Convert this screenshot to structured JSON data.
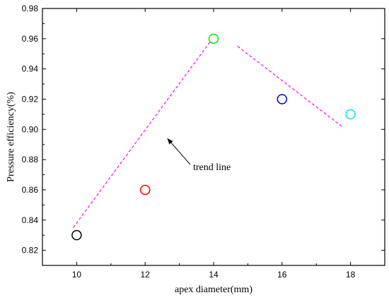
{
  "chart_data": {
    "type": "scatter",
    "title": "",
    "xlabel": "apex diameter(mm)",
    "ylabel": "Pressure efficiency(%)",
    "xlim": [
      9,
      19
    ],
    "ylim": [
      0.81,
      0.98
    ],
    "xticks": [
      10,
      12,
      14,
      16,
      18
    ],
    "xtick_labels": [
      "10",
      "12",
      "14",
      "16",
      "18"
    ],
    "yticks": [
      0.82,
      0.84,
      0.86,
      0.88,
      0.9,
      0.92,
      0.94,
      0.96,
      0.98
    ],
    "ytick_labels": [
      "0.82",
      "0.84",
      "0.86",
      "0.88",
      "0.90",
      "0.92",
      "0.94",
      "0.96",
      "0.98"
    ],
    "grid": false,
    "legend": "none",
    "points": [
      {
        "x": 10,
        "y": 0.83,
        "color": "#000000"
      },
      {
        "x": 12,
        "y": 0.86,
        "color": "#ff0000"
      },
      {
        "x": 14,
        "y": 0.96,
        "color": "#00ee00"
      },
      {
        "x": 16,
        "y": 0.92,
        "color": "#0000cc"
      },
      {
        "x": 18,
        "y": 0.91,
        "color": "#00e5ee"
      }
    ],
    "trend_lines": [
      {
        "x": [
          9.9,
          13.9
        ],
        "y": [
          0.835,
          0.958
        ],
        "color": "#ff00ff",
        "style": "dashed"
      },
      {
        "x": [
          14.7,
          17.8
        ],
        "y": [
          0.955,
          0.901
        ],
        "color": "#ff00ff",
        "style": "dashed"
      }
    ],
    "annotations": [
      {
        "text": "trend line",
        "x": 13.4,
        "y": 0.873,
        "arrow_to": {
          "x": 12.65,
          "y": 0.894
        }
      }
    ]
  }
}
